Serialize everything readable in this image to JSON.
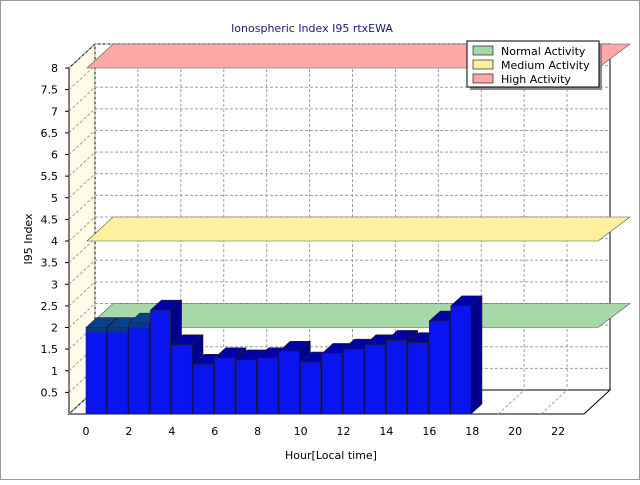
{
  "chart_data": {
    "type": "bar",
    "title": "Ionospheric Index I95 rtxEWA",
    "xlabel": "Hour[Local time]",
    "ylabel": "I95 Index",
    "x_ticks": [
      "0",
      "2",
      "4",
      "6",
      "8",
      "10",
      "12",
      "14",
      "16",
      "18",
      "20",
      "22"
    ],
    "y_ticks": [
      "0.5",
      "1",
      "1.5",
      "2",
      "2.5",
      "3",
      "3.5",
      "4",
      "4.5",
      "5",
      "5.5",
      "6",
      "6.5",
      "7",
      "7.5",
      "8"
    ],
    "ylim": [
      0,
      8
    ],
    "xlim": [
      0,
      24
    ],
    "grid": true,
    "legend_position": "top-right",
    "hours": [
      0,
      1,
      2,
      3,
      4,
      5,
      6,
      7,
      8,
      9,
      10,
      11,
      12,
      13,
      14,
      15,
      16,
      17
    ],
    "values": [
      2.0,
      2.0,
      2.1,
      2.4,
      1.6,
      1.15,
      1.3,
      1.25,
      1.3,
      1.45,
      1.2,
      1.4,
      1.5,
      1.6,
      1.7,
      1.65,
      2.15,
      2.5
    ],
    "highlighted_hours": [
      0,
      1,
      2
    ],
    "bands": [
      {
        "name": "Normal Activity",
        "value": 2.0,
        "color": "#a8d8a8"
      },
      {
        "name": "Medium Activity",
        "value": 4.0,
        "color": "#fff0a0"
      },
      {
        "name": "High Activity",
        "value": 8.0,
        "color": "#ffa8a8"
      }
    ],
    "colors": {
      "bar_front": "#0a14f0",
      "bar_top": "#0000a8",
      "bar_side": "#00008c",
      "bar_highlight_front": "#073a82",
      "bar_highlight_top": "#0a3f8c",
      "title": "#1a1a80",
      "wall": "#fffde8"
    }
  }
}
